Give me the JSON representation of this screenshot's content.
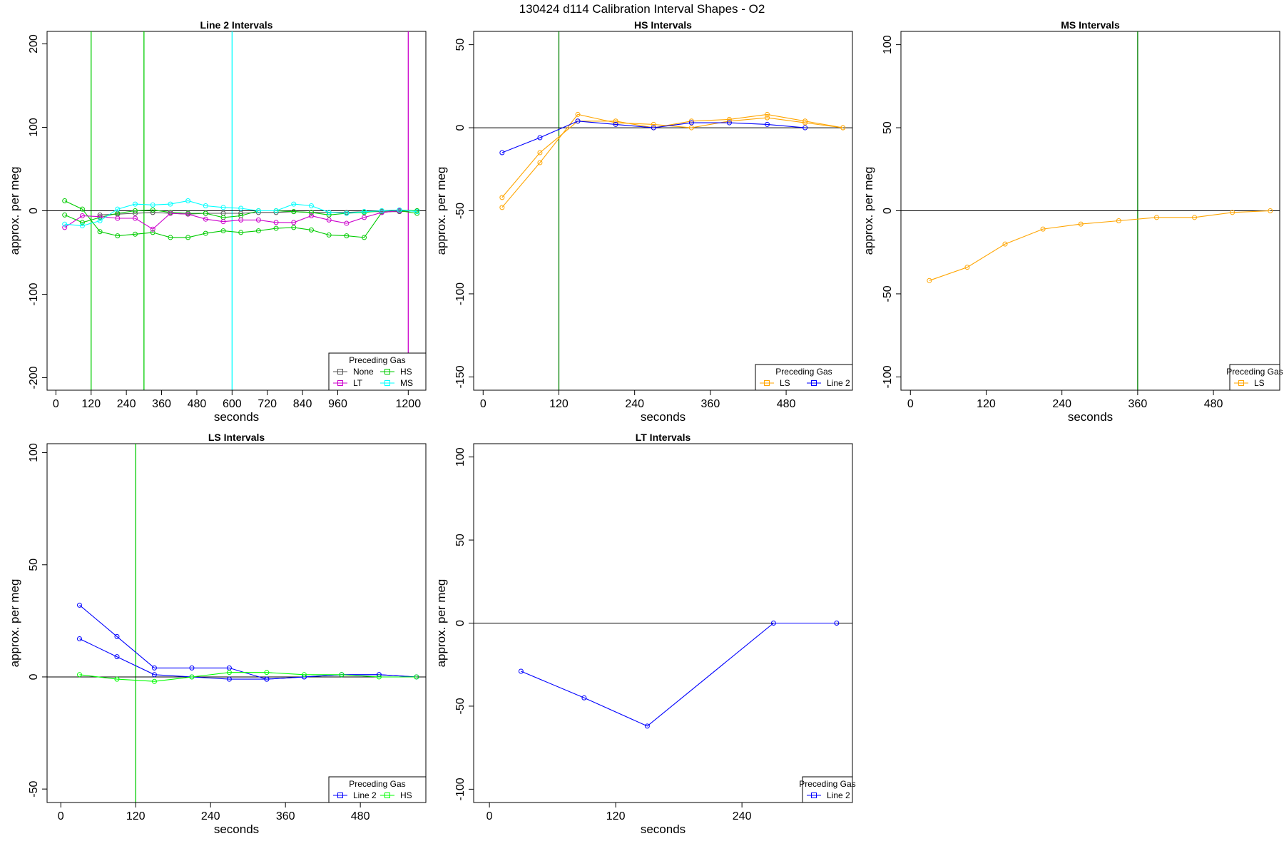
{
  "figure_title": "130424   d114   Calibration Interval Shapes - O2",
  "chart_data": [
    {
      "type": "line",
      "title": "Line 2 Intervals",
      "xlabel": "seconds",
      "ylabel": "approx. per meg",
      "xlim": [
        -30,
        1260
      ],
      "ylim": [
        -215,
        215
      ],
      "xticks": [
        0,
        120,
        240,
        360,
        480,
        600,
        720,
        840,
        960,
        1200
      ],
      "yticks": [
        -200,
        -100,
        0,
        100,
        200
      ],
      "hlines": [
        0
      ],
      "vlines": [
        {
          "x": 120,
          "color": "#00cc00"
        },
        {
          "x": 300,
          "color": "#00cc00"
        },
        {
          "x": 600,
          "color": "#00ffff"
        },
        {
          "x": 1200,
          "color": "#cc00cc"
        }
      ],
      "legend": {
        "title": "Preceding Gas",
        "position": "bottom-right",
        "columns": 2
      },
      "series": [
        {
          "name": "None",
          "color": "#555555",
          "lines": [
            {
              "x": [
                150,
                210,
                270,
                330,
                390,
                450,
                510,
                570,
                630,
                690,
                750,
                810,
                870,
                930,
                990,
                1050,
                1110,
                1170,
                1230
              ],
              "y": [
                -5,
                -4,
                -3,
                -2,
                -3,
                -4,
                -3,
                -3,
                -3,
                -2,
                -2,
                -1,
                -2,
                -2,
                -2,
                -1,
                -1,
                -1,
                0
              ]
            }
          ]
        },
        {
          "name": "HS",
          "color": "#00cc00",
          "lines": [
            {
              "x": [
                30,
                90,
                150,
                210,
                270,
                330,
                390,
                450,
                510,
                570,
                630,
                690,
                750,
                810,
                870,
                930,
                990,
                1050,
                1110,
                1170,
                1230
              ],
              "y": [
                12,
                2,
                -25,
                -30,
                -28,
                -26,
                -32,
                -32,
                -27,
                -24,
                -26,
                -24,
                -21,
                -20,
                -23,
                -29,
                -30,
                -32,
                -2,
                0,
                -3
              ]
            },
            {
              "x": [
                30,
                90,
                150,
                210,
                270,
                330,
                390,
                450,
                510,
                570,
                630,
                690,
                750,
                810,
                870,
                930,
                990,
                1050,
                1110,
                1170,
                1230
              ],
              "y": [
                -5,
                -14,
                -8,
                -3,
                0,
                1,
                -2,
                -3,
                -3,
                -8,
                -6,
                0,
                0,
                -1,
                -2,
                -5,
                -3,
                -2,
                0,
                1,
                0
              ]
            }
          ]
        },
        {
          "name": "LT",
          "color": "#cc00cc",
          "lines": [
            {
              "x": [
                30,
                90,
                150,
                210,
                270,
                330,
                390,
                450,
                510,
                570,
                630,
                690,
                750,
                810,
                870,
                930,
                990,
                1050,
                1110,
                1170
              ],
              "y": [
                -20,
                -6,
                -7,
                -9,
                -9,
                -22,
                -3,
                -4,
                -10,
                -13,
                -11,
                -11,
                -14,
                -14,
                -6,
                -11,
                -15,
                -8,
                -2,
                0
              ]
            }
          ]
        },
        {
          "name": "MS",
          "color": "#00ffff",
          "lines": [
            {
              "x": [
                30,
                90,
                150,
                210,
                270,
                330,
                390,
                450,
                510,
                570,
                630,
                690,
                750,
                810,
                870,
                930,
                990,
                1050,
                1110,
                1170,
                1230
              ],
              "y": [
                -16,
                -18,
                -12,
                2,
                8,
                7,
                8,
                12,
                6,
                4,
                3,
                0,
                0,
                8,
                6,
                -2,
                -3,
                -1,
                0,
                1,
                -1
              ]
            }
          ]
        }
      ]
    },
    {
      "type": "line",
      "title": "HS Intervals",
      "xlabel": "seconds",
      "ylabel": "approx. per meg",
      "xlim": [
        -15,
        585
      ],
      "ylim": [
        -158,
        58
      ],
      "xticks": [
        0,
        120,
        240,
        360,
        480
      ],
      "yticks": [
        -150,
        -100,
        -50,
        0,
        50
      ],
      "hlines": [
        0
      ],
      "vlines": [
        {
          "x": 120,
          "color": "#008000"
        }
      ],
      "legend": {
        "title": "Preceding Gas",
        "position": "bottom-right",
        "columns": 2
      },
      "series": [
        {
          "name": "LS",
          "color": "#ffa500",
          "lines": [
            {
              "x": [
                30,
                90,
                150,
                210,
                270,
                330,
                390,
                450,
                510,
                570
              ],
              "y": [
                -48,
                -21,
                8,
                3,
                2,
                0,
                4,
                6,
                3,
                0
              ]
            },
            {
              "x": [
                30,
                90,
                150,
                210,
                270,
                330,
                390,
                450,
                510,
                570
              ],
              "y": [
                -42,
                -15,
                4,
                4,
                0,
                4,
                5,
                8,
                4,
                0
              ]
            }
          ]
        },
        {
          "name": "Line 2",
          "color": "#0000ff",
          "lines": [
            {
              "x": [
                30,
                90,
                150,
                210,
                270,
                330,
                390,
                450,
                510
              ],
              "y": [
                -15,
                -6,
                4,
                2,
                0,
                3,
                3,
                2,
                0
              ]
            }
          ]
        }
      ]
    },
    {
      "type": "line",
      "title": "MS Intervals",
      "xlabel": "seconds",
      "ylabel": "approx. per meg",
      "xlim": [
        -15,
        585
      ],
      "ylim": [
        -108,
        108
      ],
      "xticks": [
        0,
        120,
        240,
        360,
        480
      ],
      "yticks": [
        -100,
        -50,
        0,
        50,
        100
      ],
      "hlines": [
        0
      ],
      "vlines": [
        {
          "x": 360,
          "color": "#008000"
        }
      ],
      "legend": {
        "title": "Preceding Gas",
        "position": "bottom-right",
        "columns": 1
      },
      "series": [
        {
          "name": "LS",
          "color": "#ffa500",
          "lines": [
            {
              "x": [
                30,
                90,
                150,
                210,
                270,
                330,
                390,
                450,
                510,
                570
              ],
              "y": [
                -42,
                -34,
                -20,
                -11,
                -8,
                -6,
                -4,
                -4,
                -1,
                0
              ]
            }
          ]
        }
      ]
    },
    {
      "type": "line",
      "title": "LS Intervals",
      "xlabel": "seconds",
      "ylabel": "approx. per meg",
      "xlim": [
        -22,
        585
      ],
      "ylim": [
        -56,
        104
      ],
      "xticks": [
        0,
        120,
        240,
        360,
        480
      ],
      "yticks": [
        -50,
        0,
        50,
        100
      ],
      "hlines": [
        0
      ],
      "vlines": [
        {
          "x": 120,
          "color": "#00cc00"
        }
      ],
      "legend": {
        "title": "Preceding Gas",
        "position": "bottom-right",
        "columns": 2
      },
      "series": [
        {
          "name": "Line 2",
          "color": "#0000ff",
          "lines": [
            {
              "x": [
                30,
                90,
                150,
                210,
                270,
                330,
                390,
                450,
                510,
                570
              ],
              "y": [
                32,
                18,
                4,
                4,
                4,
                -1,
                0,
                1,
                1,
                0
              ]
            },
            {
              "x": [
                30,
                90,
                150,
                210,
                270,
                330,
                390,
                450,
                510,
                570
              ],
              "y": [
                17,
                9,
                1,
                0,
                -1,
                -1,
                0,
                1,
                1,
                0
              ]
            }
          ]
        },
        {
          "name": "HS",
          "color": "#00ff00",
          "lines": [
            {
              "x": [
                30,
                90,
                150,
                210,
                270,
                330,
                390,
                450,
                510,
                570
              ],
              "y": [
                1,
                -1,
                -2,
                0,
                2,
                2,
                1,
                1,
                0,
                0
              ]
            }
          ]
        }
      ]
    },
    {
      "type": "line",
      "title": "LT Intervals",
      "xlabel": "seconds",
      "ylabel": "approx. per meg",
      "xlim": [
        -15,
        345
      ],
      "ylim": [
        -108,
        108
      ],
      "xticks": [
        0,
        120,
        240
      ],
      "yticks": [
        -100,
        -50,
        0,
        50,
        100
      ],
      "hlines": [
        0
      ],
      "vlines": [],
      "legend": {
        "title": "Preceding Gas",
        "position": "bottom-right",
        "columns": 1
      },
      "series": [
        {
          "name": "Line 2",
          "color": "#0000ff",
          "lines": [
            {
              "x": [
                30,
                90,
                150,
                270,
                330
              ],
              "y": [
                -29,
                -45,
                -62,
                0,
                0
              ]
            }
          ]
        }
      ]
    }
  ]
}
